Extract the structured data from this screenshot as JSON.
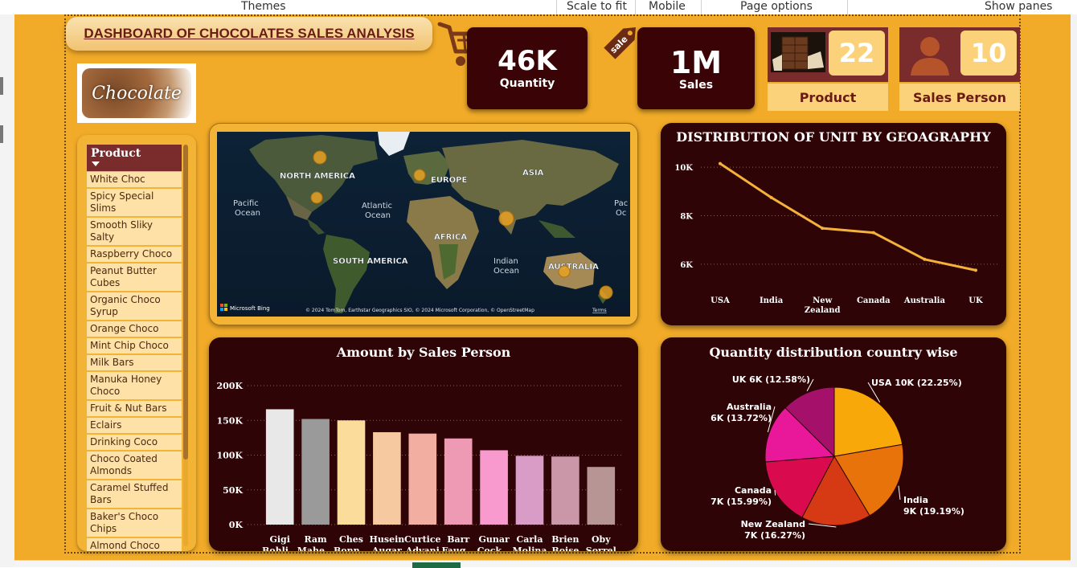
{
  "toolbar": {
    "themes": "Themes",
    "scale_to_fit": "Scale to fit",
    "mobile": "Mobile",
    "page_options": "Page options",
    "show_panes": "Show panes"
  },
  "dashboard": {
    "title": "DASHBOARD OF CHOCOLATES SALES ANALYSIS",
    "logo_text": "Chocolate",
    "tag_text": "sale"
  },
  "kpis": {
    "quantity": {
      "value": "46K",
      "label": "Quantity"
    },
    "sales": {
      "value": "1M",
      "label": "Sales"
    },
    "product": {
      "value": "22",
      "label": "Product"
    },
    "sales_person": {
      "value": "10",
      "label": "Sales Person"
    }
  },
  "slicer": {
    "title": "Product",
    "items": [
      "White Choc",
      "Spicy Special Slims",
      "Smooth Sliky Salty",
      "Raspberry Choco",
      "Peanut Butter Cubes",
      "Organic Choco Syrup",
      "Orange Choco",
      "Mint Chip Choco",
      "Milk Bars",
      "Manuka Honey Choco",
      "Fruit & Nut Bars",
      "Eclairs",
      "Drinking Coco",
      "Choco Coated Almonds",
      "Caramel Stuffed Bars",
      "Baker's Choco Chips",
      "Almond Choco"
    ]
  },
  "map": {
    "labels": {
      "north_america": "NORTH AMERICA",
      "europe": "EUROPE",
      "asia": "ASIA",
      "africa": "AFRICA",
      "south_america": "SOUTH AMERICA",
      "australia": "AUSTRALIA",
      "pacific_ocean_1": "Pacific",
      "pacific_ocean_2": "Ocean",
      "atlantic_ocean_1": "Atlantic",
      "atlantic_ocean_2": "Ocean",
      "indian_ocean_1": "Indian",
      "indian_ocean_2": "Ocean",
      "pacific_right_1": "Pac",
      "pacific_right_2": "Oc"
    },
    "bing": "Microsoft Bing",
    "attribution": "© 2024 TomTom, Earthstar Geographics SIO, © 2024 Microsoft Corporation, © OpenStreetMap",
    "terms": "Terms",
    "bubble_color": "#e8a125"
  },
  "chart_data": [
    {
      "type": "line",
      "title": "DISTRIBUTION OF UNIT BY GEOAGRAPHY",
      "x": [
        "USA",
        "India",
        "New Zealand",
        "Canada",
        "Australia",
        "UK"
      ],
      "x_lines": [
        [
          "USA"
        ],
        [
          "India"
        ],
        [
          "New",
          "Zealand"
        ],
        [
          "Canada"
        ],
        [
          "Australia"
        ],
        [
          "UK"
        ]
      ],
      "values": [
        10150,
        8750,
        7480,
        7300,
        6200,
        5750
      ],
      "ylim": [
        5000,
        10500
      ],
      "yticks": [
        6000,
        8000,
        10000
      ],
      "ytick_labels": [
        "6K",
        "8K",
        "10K"
      ],
      "color": "#f4b23a",
      "grid": true
    },
    {
      "type": "bar",
      "title": "Amount by Sales Person",
      "categories": [
        "Gigi Bohli...",
        "Ram Mahe...",
        "Ches Bonn...",
        "Husein Augar",
        "Curtice Advani",
        "Barr Faug...",
        "Gunar Cock...",
        "Carla Molina",
        "Brien Boise",
        "Oby Sorrel"
      ],
      "category_lines": [
        [
          "Gigi",
          "Bohli..."
        ],
        [
          "Ram",
          "Mahe..."
        ],
        [
          "Ches",
          "Bonn..."
        ],
        [
          "Husein",
          "Augar"
        ],
        [
          "Curtice",
          "Advani"
        ],
        [
          "Barr",
          "Faug..."
        ],
        [
          "Gunar",
          "Cock..."
        ],
        [
          "Carla",
          "Molina"
        ],
        [
          "Brien",
          "Boise"
        ],
        [
          "Oby",
          "Sorrel"
        ]
      ],
      "values": [
        166000,
        152000,
        150000,
        133000,
        131000,
        124000,
        107000,
        99000,
        98000,
        83000
      ],
      "colors": [
        "#e8e8e8",
        "#9a9a9a",
        "#fcdc9a",
        "#f6c9a1",
        "#f2aea1",
        "#ef9ab5",
        "#f89ace",
        "#d89cc6",
        "#c997a7",
        "#b89595"
      ],
      "ylim": [
        0,
        200000
      ],
      "yticks": [
        0,
        50000,
        100000,
        150000,
        200000
      ],
      "ytick_labels": [
        "0K",
        "50K",
        "100K",
        "150K",
        "200K"
      ],
      "grid": true
    },
    {
      "type": "pie",
      "title": "Quantity distribution country wise",
      "slices": [
        {
          "name": "USA",
          "value": 22.25,
          "label_lines": [
            "USA 10K (22.25%)"
          ],
          "color": "#f8a808"
        },
        {
          "name": "India",
          "value": 19.19,
          "label_lines": [
            "India",
            "9K (19.19%)"
          ],
          "color": "#e9730b"
        },
        {
          "name": "New Zealand",
          "value": 16.27,
          "label_lines": [
            "New Zealand",
            "7K (16.27%)"
          ],
          "color": "#d63a15"
        },
        {
          "name": "Canada",
          "value": 15.99,
          "label_lines": [
            "Canada",
            "7K (15.99%)"
          ],
          "color": "#d90a4e"
        },
        {
          "name": "Australia",
          "value": 13.72,
          "label_lines": [
            "Australia",
            "6K (13.72%)"
          ],
          "color": "#e9179a"
        },
        {
          "name": "UK",
          "value": 12.58,
          "label_lines": [
            "UK 6K (12.58%)"
          ],
          "color": "#a5106a"
        }
      ]
    }
  ]
}
